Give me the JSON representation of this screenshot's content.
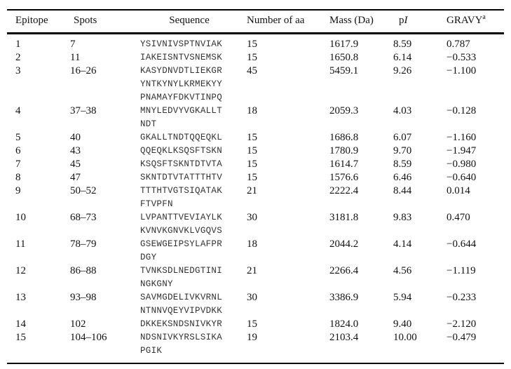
{
  "table": {
    "headers": [
      {
        "text": "Epitope"
      },
      {
        "text": "Spots"
      },
      {
        "text": "Sequence"
      },
      {
        "text": "Number of aa"
      },
      {
        "text": "Mass (Da)"
      },
      {
        "text": "p",
        "italic": "I"
      },
      {
        "text": "GRAVY",
        "sup": "a"
      }
    ],
    "rows": [
      {
        "epitope": "1",
        "spots": "7",
        "sequence": [
          "YSIVNIVSPTNVIAK"
        ],
        "aa": "15",
        "mass": "1617.9",
        "pi": "8.59",
        "gravy": "0.787"
      },
      {
        "epitope": "2",
        "spots": "11",
        "sequence": [
          "IAKEISNTVSNEMSK"
        ],
        "aa": "15",
        "mass": "1650.8",
        "pi": "6.14",
        "gravy": "−0.533"
      },
      {
        "epitope": "3",
        "spots": "16–26",
        "sequence": [
          "KASYDNVDTLIEKGR",
          "YNTKYNYLKRMEKYY",
          "PNAMAYFDKVTINPQ"
        ],
        "aa": "45",
        "mass": "5459.1",
        "pi": "9.26",
        "gravy": "−1.100"
      },
      {
        "epitope": "4",
        "spots": "37–38",
        "sequence": [
          "MNYLEDVYVGKALLT",
          "NDT"
        ],
        "aa": "18",
        "mass": "2059.3",
        "pi": "4.03",
        "gravy": "−0.128"
      },
      {
        "epitope": "5",
        "spots": "40",
        "sequence": [
          "GKALLTNDTQQEQKL"
        ],
        "aa": "15",
        "mass": "1686.8",
        "pi": "6.07",
        "gravy": "−1.160"
      },
      {
        "epitope": "6",
        "spots": "43",
        "sequence": [
          "QQEQKLKSQSFTSKN"
        ],
        "aa": "15",
        "mass": "1780.9",
        "pi": "9.70",
        "gravy": "−1.947"
      },
      {
        "epitope": "7",
        "spots": "45",
        "sequence": [
          "KSQSFTSKNTDTVTA"
        ],
        "aa": "15",
        "mass": "1614.7",
        "pi": "8.59",
        "gravy": "−0.980"
      },
      {
        "epitope": "8",
        "spots": "47",
        "sequence": [
          "SKNTDTVTATTTHTV"
        ],
        "aa": "15",
        "mass": "1576.6",
        "pi": "6.46",
        "gravy": "−0.640"
      },
      {
        "epitope": "9",
        "spots": "50–52",
        "sequence": [
          "TTTHTVGTSIQATAK",
          "FTVPFN"
        ],
        "aa": "21",
        "mass": "2222.4",
        "pi": "8.44",
        "gravy": "0.014"
      },
      {
        "epitope": "10",
        "spots": "68–73",
        "sequence": [
          "LVPANTTVEVIAYLK",
          "KVNVKGNVKLVGQVS"
        ],
        "aa": "30",
        "mass": "3181.8",
        "pi": "9.83",
        "gravy": "0.470"
      },
      {
        "epitope": "11",
        "spots": "78–79",
        "sequence": [
          "GSEWGEIPSYLAFPR",
          "DGY"
        ],
        "aa": "18",
        "mass": "2044.2",
        "pi": "4.14",
        "gravy": "−0.644"
      },
      {
        "epitope": "12",
        "spots": "86–88",
        "sequence": [
          "TVNKSDLNEDGTINI",
          "NGKGNY"
        ],
        "aa": "21",
        "mass": "2266.4",
        "pi": "4.56",
        "gravy": "−1.119"
      },
      {
        "epitope": "13",
        "spots": "93–98",
        "sequence": [
          "SAVMGDELIVKVRNL",
          "NTNNVQEYVIPVDKK"
        ],
        "aa": "30",
        "mass": "3386.9",
        "pi": "5.94",
        "gravy": "−0.233"
      },
      {
        "epitope": "14",
        "spots": "102",
        "sequence": [
          "DKKEKSNDSNIVKYR"
        ],
        "aa": "15",
        "mass": "1824.0",
        "pi": "9.40",
        "gravy": "−2.120"
      },
      {
        "epitope": "15",
        "spots": "104–106",
        "sequence": [
          "NDSNIVKYRSLSIKA",
          "PGIK"
        ],
        "aa": "19",
        "mass": "2103.4",
        "pi": "10.00",
        "gravy": "−0.479"
      }
    ]
  }
}
